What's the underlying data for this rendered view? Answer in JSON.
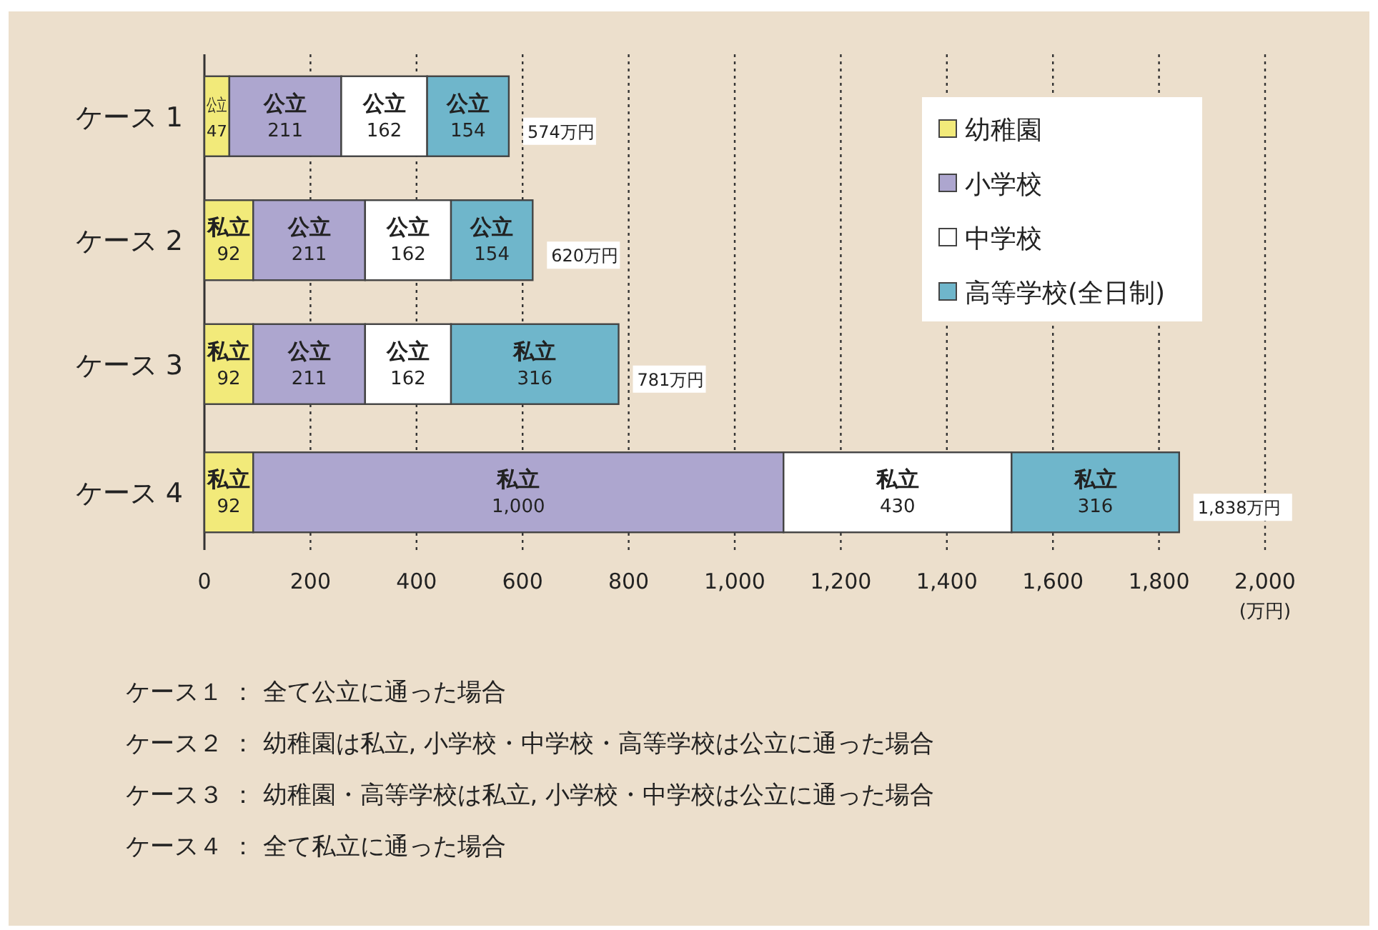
{
  "chart_data": {
    "type": "bar",
    "orientation": "horizontal",
    "stacked": true,
    "categories": [
      "ケース 1",
      "ケース 2",
      "ケース 3",
      "ケース 4"
    ],
    "series": [
      {
        "name": "幼稚園",
        "color": "#f2ea7a",
        "values": [
          47,
          92,
          92,
          92
        ],
        "value_labels": [
          "公立\n47",
          "私立\n92",
          "私立\n92",
          "私立\n92"
        ]
      },
      {
        "name": "小学校",
        "color": "#ada6cf",
        "values": [
          211,
          211,
          211,
          1000
        ],
        "value_labels": [
          "公立\n211",
          "公立\n211",
          "公立\n211",
          "私立\n1,000"
        ]
      },
      {
        "name": "中学校",
        "color": "#ffffff",
        "values": [
          162,
          162,
          162,
          430
        ],
        "value_labels": [
          "公立\n162",
          "公立\n162",
          "公立\n162",
          "私立\n430"
        ]
      },
      {
        "name": "高等学校(全日制)",
        "color": "#6fb6cb",
        "values": [
          154,
          154,
          316,
          316
        ],
        "value_labels": [
          "公立\n154",
          "公立\n154",
          "私立\n316",
          "私立\n316"
        ]
      }
    ],
    "totals": [
      "574万円",
      "620万円",
      "781万円",
      "1,838万円"
    ],
    "xlim": [
      0,
      2000
    ],
    "xticks": [
      0,
      200,
      400,
      600,
      800,
      {
        "value": 1000,
        "label": "1,000"
      },
      {
        "value": 1200,
        "label": "1,200"
      },
      {
        "value": 1400,
        "label": "1,400"
      },
      {
        "value": 1600,
        "label": "1,600"
      },
      {
        "value": 1800,
        "label": "1,800"
      },
      {
        "value": 2000,
        "label": "2,000"
      }
    ],
    "xlabel": "(万円)",
    "grid": "x",
    "legend": "top right",
    "annotations": [
      "ケース１ ： 全て公立に通った場合",
      "ケース２ ： 幼稚園は私立, 小学校・中学校・高等学校は公立に通った場合",
      "ケース３ ： 幼稚園・高等学校は私立, 小学校・中学校は公立に通った場合",
      "ケース４ ： 全て私立に通った場合"
    ]
  }
}
